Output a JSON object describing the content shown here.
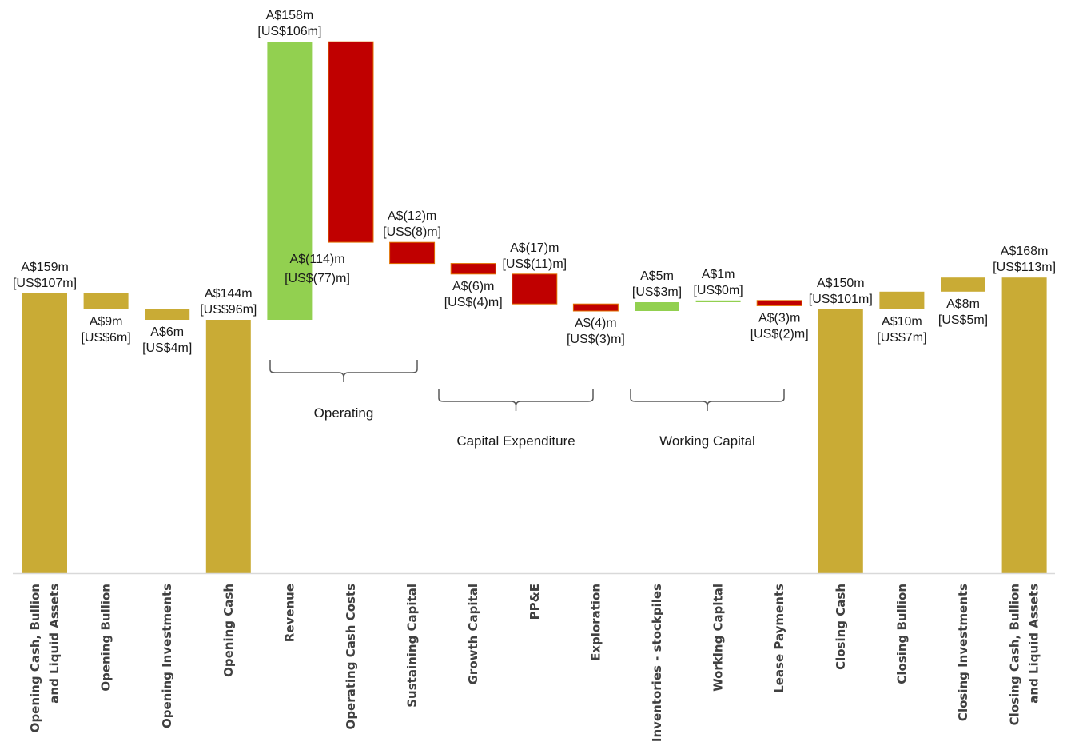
{
  "colors": {
    "total": "#C9AB35",
    "increase": "#92D050",
    "decrease": "#C00000",
    "decrease_border": "#E07000",
    "axis": "#D9D9D9",
    "bracket": "#595959"
  },
  "chart_data": {
    "type": "bar",
    "subtype": "waterfall",
    "title": "",
    "xlabel": "",
    "ylabel": "",
    "ylim": [
      0,
      175
    ],
    "grid": false,
    "legend": "none",
    "categories": [
      {
        "label": [
          "Opening Cash, Bullion",
          "and Liquid Assets"
        ],
        "kind": "total",
        "base": 0,
        "top": 159,
        "value_label": [
          "A$159m",
          "[US$107m]"
        ]
      },
      {
        "label": [
          "Opening Bullion"
        ],
        "kind": "total",
        "base": 150,
        "top": 159,
        "value_label": [
          "A$9m",
          "[US$6m]"
        ]
      },
      {
        "label": [
          "Opening Investments"
        ],
        "kind": "total",
        "base": 144,
        "top": 150,
        "value_label": [
          "A$6m",
          "[US$4m]"
        ]
      },
      {
        "label": [
          "Opening Cash"
        ],
        "kind": "total",
        "base": 0,
        "top": 144,
        "value_label": [
          "A$144m",
          "[US$96m]"
        ]
      },
      {
        "label": [
          "Revenue"
        ],
        "kind": "increase",
        "base": 144,
        "top": 302,
        "value_label": [
          "A$158m",
          "[US$106m]"
        ]
      },
      {
        "label": [
          "Operating Cash Costs"
        ],
        "kind": "decrease",
        "base": 188,
        "top": 302,
        "value_label": [
          "A$(114)m",
          "[US$(77)m]"
        ]
      },
      {
        "label": [
          "Sustaining Capital"
        ],
        "kind": "decrease",
        "base": 176,
        "top": 188,
        "value_label": [
          "A$(12)m",
          "[US$(8)m]"
        ]
      },
      {
        "label": [
          "Growth Capital"
        ],
        "kind": "decrease",
        "base": 170,
        "top": 176,
        "value_label": [
          "A$(6)m",
          "[US$(4)m]"
        ]
      },
      {
        "label": [
          "PP&E"
        ],
        "kind": "decrease",
        "base": 153,
        "top": 170,
        "value_label": [
          "A$(17)m",
          "[US$(11)m]"
        ]
      },
      {
        "label": [
          "Exploration"
        ],
        "kind": "decrease",
        "base": 149,
        "top": 153,
        "value_label": [
          "A$(4)m",
          "[US$(3)m]"
        ]
      },
      {
        "label": [
          "Inventories - stockpiles"
        ],
        "kind": "increase",
        "base": 149,
        "top": 154,
        "value_label": [
          "A$5m",
          "[US$3m]"
        ]
      },
      {
        "label": [
          "Working Capital"
        ],
        "kind": "increase",
        "base": 154,
        "top": 155,
        "value_label": [
          "A$1m",
          "[US$0m]"
        ]
      },
      {
        "label": [
          "Lease Payments"
        ],
        "kind": "decrease",
        "base": 152,
        "top": 155,
        "value_label": [
          "A$(3)m",
          "[US$(2)m]"
        ]
      },
      {
        "label": [
          "Closing Cash"
        ],
        "kind": "total",
        "base": 0,
        "top": 150,
        "value_label": [
          "A$150m",
          "[US$101m]"
        ]
      },
      {
        "label": [
          "Closing Bullion"
        ],
        "kind": "total",
        "base": 150,
        "top": 160,
        "value_label": [
          "A$10m",
          "[US$7m]"
        ]
      },
      {
        "label": [
          "Closing Investments"
        ],
        "kind": "total",
        "base": 160,
        "top": 168,
        "value_label": [
          "A$8m",
          "[US$5m]"
        ]
      },
      {
        "label": [
          "Closing Cash, Bullion",
          "and Liquid Assets"
        ],
        "kind": "total",
        "base": 0,
        "top": 168,
        "value_label": [
          "A$168m",
          "[US$113m]"
        ]
      }
    ],
    "groups": [
      {
        "label": "Operating",
        "from": 4,
        "to": 5
      },
      {
        "label": "Capital Expenditure",
        "from": 7,
        "to": 9
      },
      {
        "label": "Working Capital",
        "from": 10,
        "to": 12
      }
    ]
  }
}
